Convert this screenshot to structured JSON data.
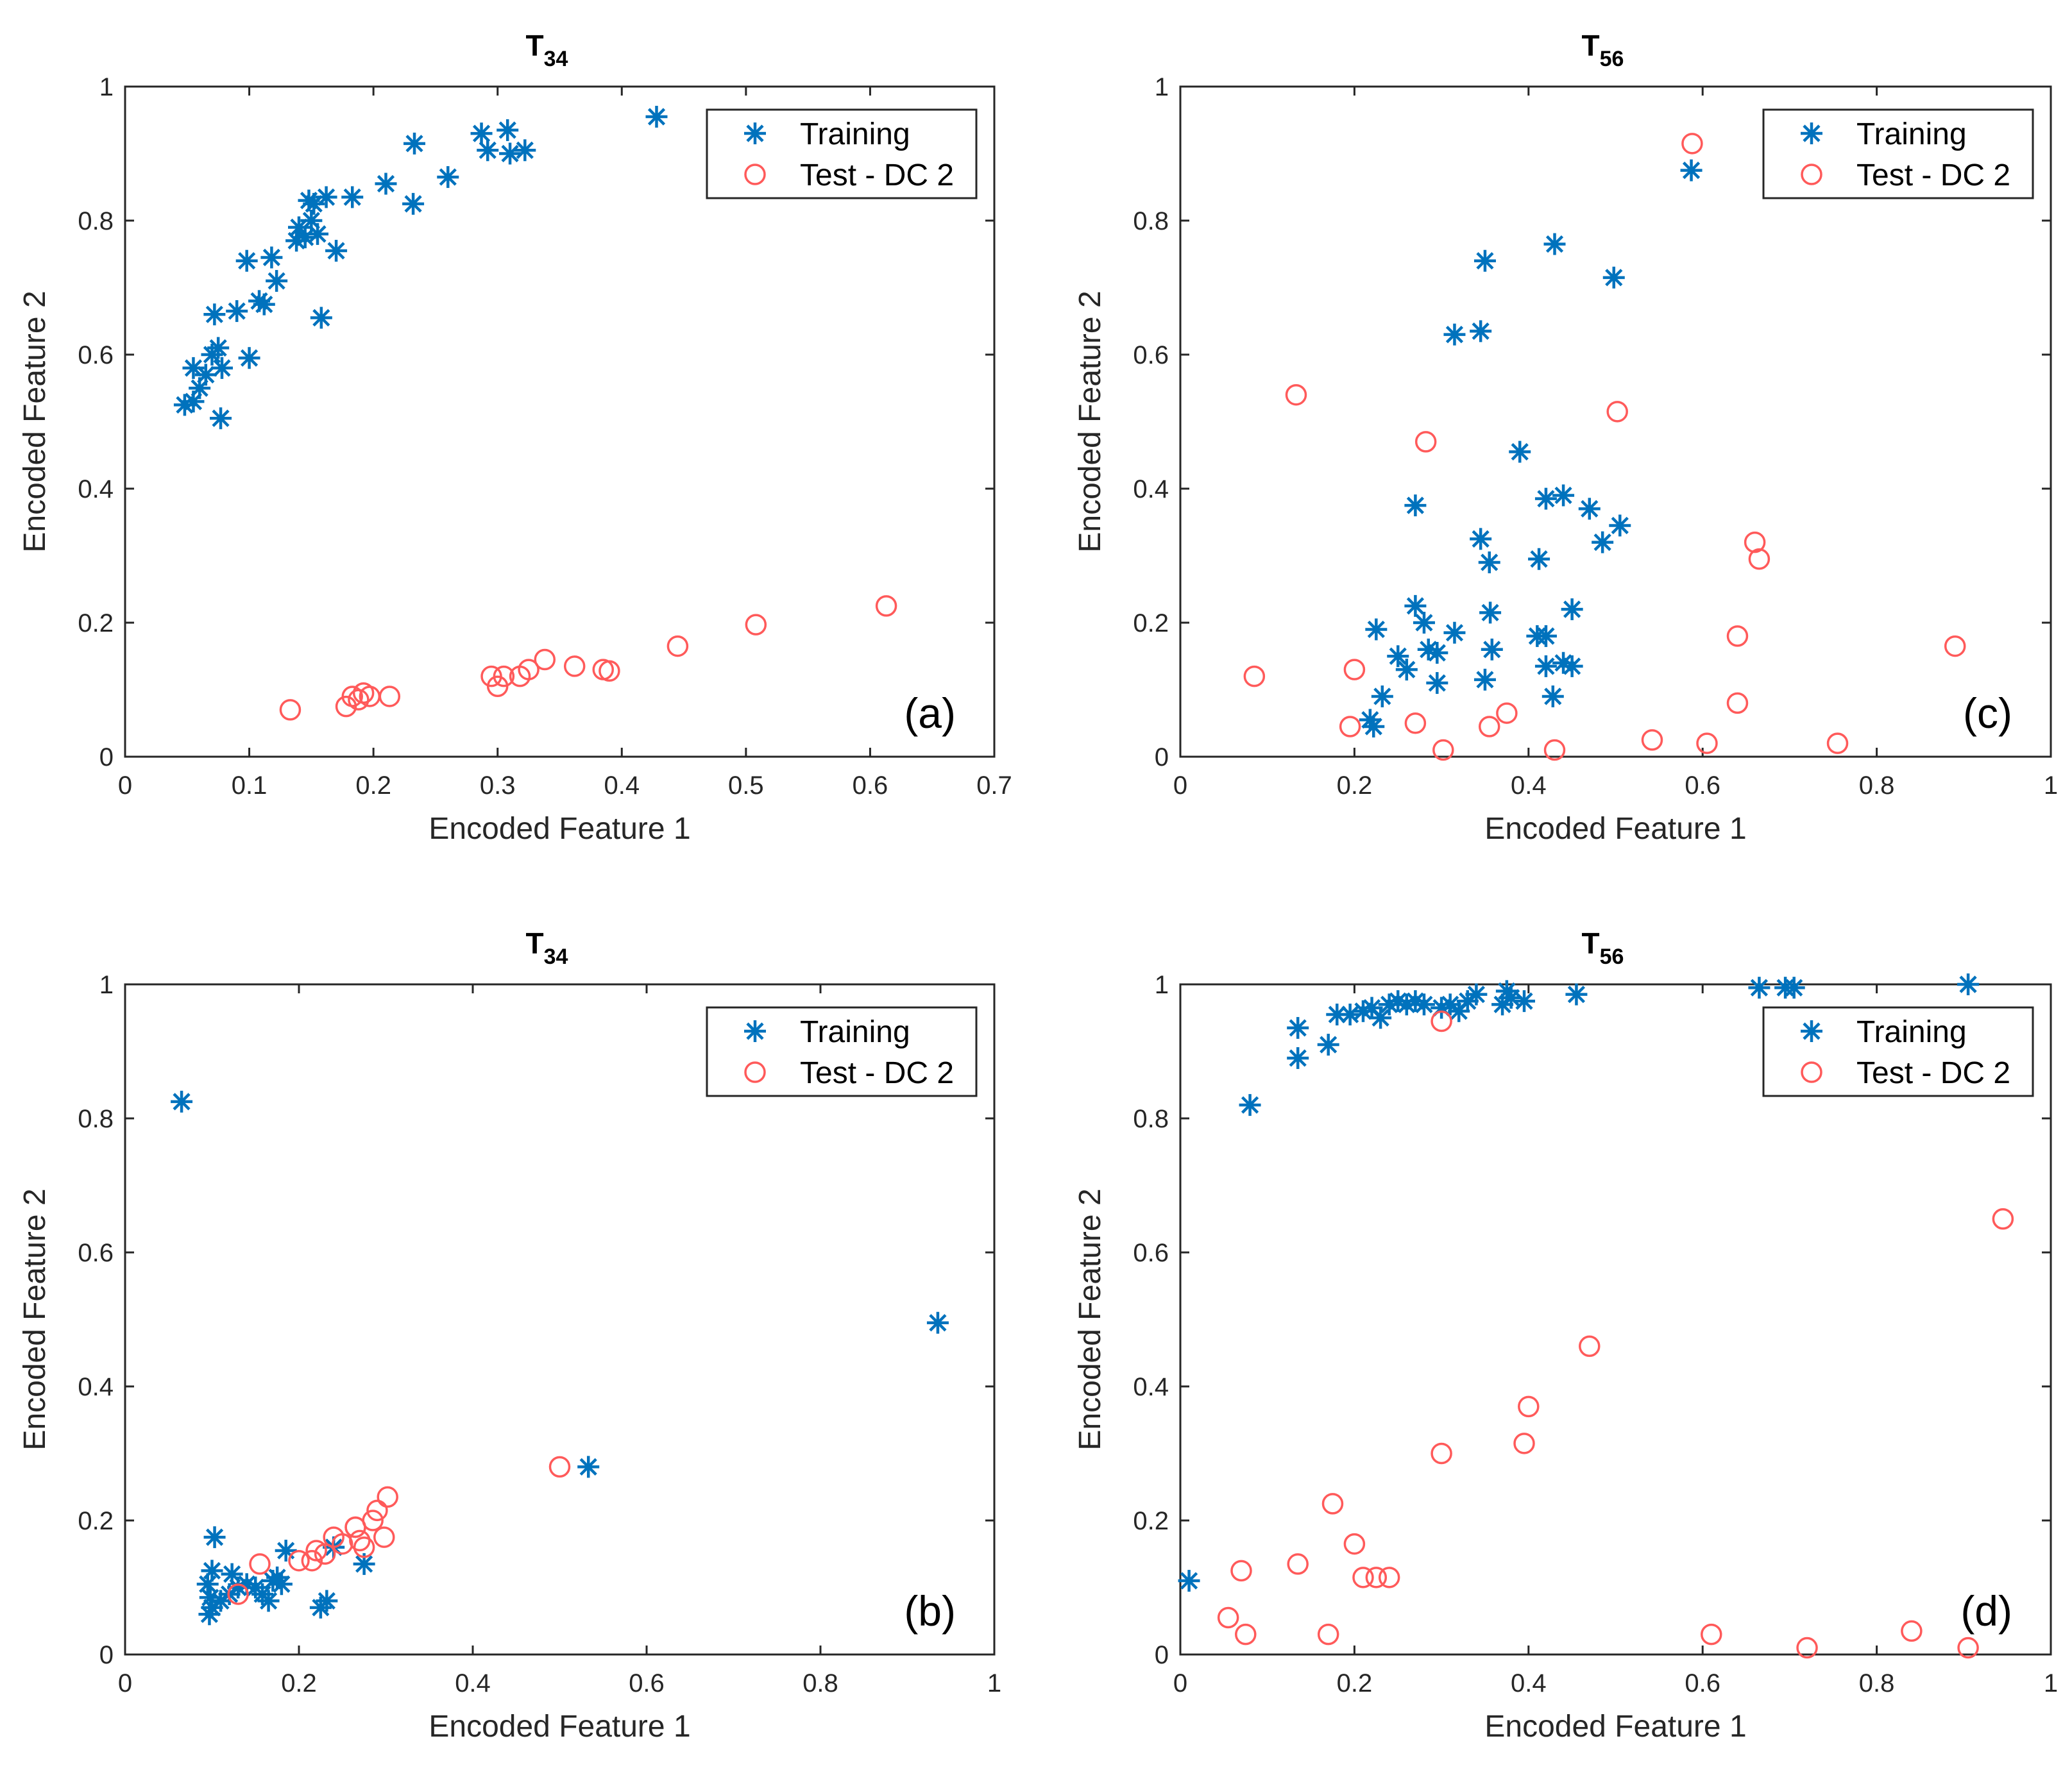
{
  "figure": {
    "colors": {
      "training": "#0072BD",
      "test": "#FF5A5A",
      "axis": "#262626"
    }
  },
  "chart_data": [
    {
      "id": "a",
      "type": "scatter",
      "title": {
        "main": "T",
        "sub": "34"
      },
      "panel_label": "(a)",
      "xlabel": "Encoded Feature 1",
      "ylabel": "Encoded Feature 2",
      "xlim": [
        0,
        0.7
      ],
      "ylim": [
        0,
        1
      ],
      "xticks": [
        0,
        0.1,
        0.2,
        0.3,
        0.4,
        0.5,
        0.6,
        0.7
      ],
      "xtick_labels": [
        "0",
        "0.1",
        "0.2",
        "0.3",
        "0.4",
        "0.5",
        "0.6",
        "0.7"
      ],
      "yticks": [
        0,
        0.2,
        0.4,
        0.6,
        0.8,
        1
      ],
      "ytick_labels": [
        "0",
        "0.2",
        "0.4",
        "0.6",
        "0.8",
        "1"
      ],
      "legend": {
        "position": "top-right",
        "entries": [
          "Training",
          "Test - DC 2"
        ]
      },
      "series": [
        {
          "name": "Training",
          "marker": "star",
          "points": [
            [
              0.048,
              0.525
            ],
            [
              0.055,
              0.53
            ],
            [
              0.055,
              0.58
            ],
            [
              0.06,
              0.55
            ],
            [
              0.065,
              0.57
            ],
            [
              0.07,
              0.6
            ],
            [
              0.072,
              0.66
            ],
            [
              0.075,
              0.61
            ],
            [
              0.078,
              0.58
            ],
            [
              0.077,
              0.505
            ],
            [
              0.09,
              0.665
            ],
            [
              0.098,
              0.74
            ],
            [
              0.1,
              0.595
            ],
            [
              0.108,
              0.68
            ],
            [
              0.112,
              0.675
            ],
            [
              0.118,
              0.745
            ],
            [
              0.122,
              0.71
            ],
            [
              0.138,
              0.77
            ],
            [
              0.14,
              0.79
            ],
            [
              0.145,
              0.775
            ],
            [
              0.148,
              0.83
            ],
            [
              0.15,
              0.8
            ],
            [
              0.152,
              0.825
            ],
            [
              0.155,
              0.78
            ],
            [
              0.158,
              0.655
            ],
            [
              0.162,
              0.835
            ],
            [
              0.17,
              0.755
            ],
            [
              0.183,
              0.835
            ],
            [
              0.21,
              0.855
            ],
            [
              0.232,
              0.825
            ],
            [
              0.233,
              0.915
            ],
            [
              0.26,
              0.865
            ],
            [
              0.287,
              0.93
            ],
            [
              0.292,
              0.905
            ],
            [
              0.308,
              0.935
            ],
            [
              0.31,
              0.9
            ],
            [
              0.322,
              0.905
            ],
            [
              0.428,
              0.955
            ]
          ]
        },
        {
          "name": "Test - DC 2",
          "marker": "circle",
          "points": [
            [
              0.133,
              0.07
            ],
            [
              0.178,
              0.075
            ],
            [
              0.183,
              0.09
            ],
            [
              0.188,
              0.085
            ],
            [
              0.192,
              0.095
            ],
            [
              0.197,
              0.09
            ],
            [
              0.213,
              0.09
            ],
            [
              0.295,
              0.12
            ],
            [
              0.3,
              0.105
            ],
            [
              0.305,
              0.12
            ],
            [
              0.318,
              0.12
            ],
            [
              0.325,
              0.13
            ],
            [
              0.338,
              0.145
            ],
            [
              0.362,
              0.135
            ],
            [
              0.385,
              0.13
            ],
            [
              0.39,
              0.128
            ],
            [
              0.445,
              0.165
            ],
            [
              0.508,
              0.197
            ],
            [
              0.613,
              0.225
            ]
          ]
        }
      ]
    },
    {
      "id": "c",
      "type": "scatter",
      "title": {
        "main": "T",
        "sub": "56"
      },
      "panel_label": "(c)",
      "xlabel": "Encoded Feature 1",
      "ylabel": "Encoded Feature 2",
      "xlim": [
        0,
        1
      ],
      "ylim": [
        0,
        1
      ],
      "xticks": [
        0,
        0.2,
        0.4,
        0.6,
        0.8,
        1
      ],
      "xtick_labels": [
        "0",
        "0.2",
        "0.4",
        "0.6",
        "0.8",
        "1"
      ],
      "yticks": [
        0,
        0.2,
        0.4,
        0.6,
        0.8,
        1
      ],
      "ytick_labels": [
        "0",
        "0.2",
        "0.4",
        "0.6",
        "0.8",
        "1"
      ],
      "legend": {
        "position": "top-right",
        "entries": [
          "Training",
          "Test - DC 2"
        ]
      },
      "series": [
        {
          "name": "Training",
          "marker": "star",
          "points": [
            [
              0.587,
              0.875
            ],
            [
              0.43,
              0.765
            ],
            [
              0.35,
              0.74
            ],
            [
              0.498,
              0.715
            ],
            [
              0.315,
              0.63
            ],
            [
              0.345,
              0.635
            ],
            [
              0.39,
              0.455
            ],
            [
              0.27,
              0.375
            ],
            [
              0.42,
              0.385
            ],
            [
              0.44,
              0.39
            ],
            [
              0.47,
              0.37
            ],
            [
              0.505,
              0.345
            ],
            [
              0.485,
              0.32
            ],
            [
              0.345,
              0.325
            ],
            [
              0.355,
              0.29
            ],
            [
              0.412,
              0.295
            ],
            [
              0.27,
              0.225
            ],
            [
              0.28,
              0.2
            ],
            [
              0.225,
              0.19
            ],
            [
              0.356,
              0.215
            ],
            [
              0.45,
              0.22
            ],
            [
              0.315,
              0.185
            ],
            [
              0.41,
              0.18
            ],
            [
              0.42,
              0.18
            ],
            [
              0.25,
              0.15
            ],
            [
              0.285,
              0.16
            ],
            [
              0.295,
              0.155
            ],
            [
              0.358,
              0.16
            ],
            [
              0.26,
              0.13
            ],
            [
              0.42,
              0.135
            ],
            [
              0.44,
              0.14
            ],
            [
              0.45,
              0.135
            ],
            [
              0.232,
              0.09
            ],
            [
              0.295,
              0.11
            ],
            [
              0.35,
              0.115
            ],
            [
              0.428,
              0.09
            ],
            [
              0.218,
              0.055
            ],
            [
              0.222,
              0.045
            ]
          ]
        },
        {
          "name": "Test - DC 2",
          "marker": "circle",
          "points": [
            [
              0.588,
              0.915
            ],
            [
              0.133,
              0.54
            ],
            [
              0.502,
              0.515
            ],
            [
              0.282,
              0.47
            ],
            [
              0.66,
              0.32
            ],
            [
              0.665,
              0.295
            ],
            [
              0.085,
              0.12
            ],
            [
              0.2,
              0.13
            ],
            [
              0.64,
              0.18
            ],
            [
              0.89,
              0.165
            ],
            [
              0.195,
              0.045
            ],
            [
              0.27,
              0.05
            ],
            [
              0.355,
              0.045
            ],
            [
              0.375,
              0.065
            ],
            [
              0.64,
              0.08
            ],
            [
              0.302,
              0.01
            ],
            [
              0.43,
              0.01
            ],
            [
              0.542,
              0.025
            ],
            [
              0.605,
              0.02
            ],
            [
              0.755,
              0.02
            ]
          ]
        }
      ]
    },
    {
      "id": "b",
      "type": "scatter",
      "title": {
        "main": "T",
        "sub": "34"
      },
      "panel_label": "(b)",
      "xlabel": "Encoded Feature 1",
      "ylabel": "Encoded Feature 2",
      "xlim": [
        0,
        1
      ],
      "ylim": [
        0,
        1
      ],
      "xticks": [
        0,
        0.2,
        0.4,
        0.6,
        0.8,
        1
      ],
      "xtick_labels": [
        "0",
        "0.2",
        "0.4",
        "0.6",
        "0.8",
        "1"
      ],
      "yticks": [
        0,
        0.2,
        0.4,
        0.6,
        0.8,
        1
      ],
      "ytick_labels": [
        "0",
        "0.2",
        "0.4",
        "0.6",
        "0.8",
        "1"
      ],
      "legend": {
        "position": "top-right",
        "entries": [
          "Training",
          "Test - DC 2"
        ]
      },
      "series": [
        {
          "name": "Training",
          "marker": "star",
          "points": [
            [
              0.065,
              0.825
            ],
            [
              0.935,
              0.495
            ],
            [
              0.533,
              0.28
            ],
            [
              0.103,
              0.175
            ],
            [
              0.1,
              0.125
            ],
            [
              0.095,
              0.105
            ],
            [
              0.098,
              0.085
            ],
            [
              0.1,
              0.07
            ],
            [
              0.097,
              0.06
            ],
            [
              0.11,
              0.08
            ],
            [
              0.12,
              0.09
            ],
            [
              0.123,
              0.12
            ],
            [
              0.13,
              0.1
            ],
            [
              0.14,
              0.105
            ],
            [
              0.15,
              0.1
            ],
            [
              0.158,
              0.09
            ],
            [
              0.165,
              0.08
            ],
            [
              0.17,
              0.11
            ],
            [
              0.175,
              0.115
            ],
            [
              0.18,
              0.105
            ],
            [
              0.185,
              0.155
            ],
            [
              0.225,
              0.07
            ],
            [
              0.232,
              0.08
            ],
            [
              0.275,
              0.135
            ],
            [
              0.24,
              0.16
            ]
          ]
        },
        {
          "name": "Test - DC 2",
          "marker": "circle",
          "points": [
            [
              0.13,
              0.09
            ],
            [
              0.155,
              0.135
            ],
            [
              0.2,
              0.14
            ],
            [
              0.215,
              0.14
            ],
            [
              0.22,
              0.155
            ],
            [
              0.23,
              0.15
            ],
            [
              0.24,
              0.175
            ],
            [
              0.25,
              0.165
            ],
            [
              0.265,
              0.19
            ],
            [
              0.27,
              0.17
            ],
            [
              0.275,
              0.16
            ],
            [
              0.285,
              0.2
            ],
            [
              0.29,
              0.215
            ],
            [
              0.298,
              0.175
            ],
            [
              0.302,
              0.235
            ],
            [
              0.5,
              0.28
            ],
            [
              0.265,
              0.19
            ]
          ]
        }
      ]
    },
    {
      "id": "d",
      "type": "scatter",
      "title": {
        "main": "T",
        "sub": "56"
      },
      "panel_label": "(d)",
      "xlabel": "Encoded Feature 1",
      "ylabel": "Encoded Feature 2",
      "xlim": [
        0,
        1
      ],
      "ylim": [
        0,
        1
      ],
      "xticks": [
        0,
        0.2,
        0.4,
        0.6,
        0.8,
        1
      ],
      "xtick_labels": [
        "0",
        "0.2",
        "0.4",
        "0.6",
        "0.8",
        "1"
      ],
      "yticks": [
        0,
        0.2,
        0.4,
        0.6,
        0.8,
        1
      ],
      "ytick_labels": [
        "0",
        "0.2",
        "0.4",
        "0.6",
        "0.8",
        "1"
      ],
      "legend": {
        "position": "top-right",
        "entries": [
          "Training",
          "Test - DC 2"
        ]
      },
      "series": [
        {
          "name": "Training",
          "marker": "star",
          "points": [
            [
              0.01,
              0.11
            ],
            [
              0.08,
              0.82
            ],
            [
              0.135,
              0.89
            ],
            [
              0.135,
              0.935
            ],
            [
              0.17,
              0.91
            ],
            [
              0.18,
              0.955
            ],
            [
              0.195,
              0.955
            ],
            [
              0.21,
              0.96
            ],
            [
              0.22,
              0.965
            ],
            [
              0.23,
              0.95
            ],
            [
              0.24,
              0.97
            ],
            [
              0.25,
              0.975
            ],
            [
              0.26,
              0.97
            ],
            [
              0.27,
              0.975
            ],
            [
              0.28,
              0.97
            ],
            [
              0.3,
              0.965
            ],
            [
              0.31,
              0.97
            ],
            [
              0.32,
              0.96
            ],
            [
              0.33,
              0.975
            ],
            [
              0.34,
              0.985
            ],
            [
              0.37,
              0.97
            ],
            [
              0.375,
              0.99
            ],
            [
              0.38,
              0.98
            ],
            [
              0.395,
              0.975
            ],
            [
              0.455,
              0.985
            ],
            [
              0.665,
              0.995
            ],
            [
              0.695,
              0.995
            ],
            [
              0.705,
              0.995
            ],
            [
              0.905,
              1.0
            ]
          ]
        },
        {
          "name": "Test - DC 2",
          "marker": "circle",
          "points": [
            [
              0.3,
              0.945
            ],
            [
              0.945,
              0.65
            ],
            [
              0.47,
              0.46
            ],
            [
              0.4,
              0.37
            ],
            [
              0.395,
              0.315
            ],
            [
              0.3,
              0.3
            ],
            [
              0.175,
              0.225
            ],
            [
              0.2,
              0.165
            ],
            [
              0.21,
              0.115
            ],
            [
              0.225,
              0.115
            ],
            [
              0.24,
              0.115
            ],
            [
              0.135,
              0.135
            ],
            [
              0.07,
              0.125
            ],
            [
              0.055,
              0.055
            ],
            [
              0.075,
              0.03
            ],
            [
              0.17,
              0.03
            ],
            [
              0.61,
              0.03
            ],
            [
              0.72,
              0.01
            ],
            [
              0.84,
              0.035
            ],
            [
              0.905,
              0.01
            ]
          ]
        }
      ]
    }
  ]
}
